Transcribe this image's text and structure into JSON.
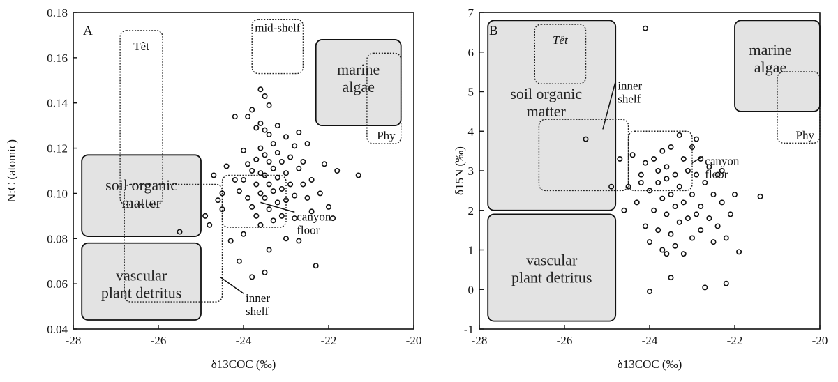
{
  "chart_data": [
    {
      "id": "A",
      "type": "scatter",
      "panel_label": "A",
      "xlabel": "δ13COC (‰)",
      "ylabel": "N:C (atomic)",
      "xlim": [
        -28,
        -20
      ],
      "ylim": [
        0.04,
        0.18
      ],
      "xticks": [
        "-28",
        "-26",
        "-24",
        "-22",
        "-20"
      ],
      "yticks": [
        "0.04",
        "0.06",
        "0.08",
        "0.10",
        "0.12",
        "0.14",
        "0.16",
        "0.18"
      ],
      "grid": false,
      "regions": [
        {
          "label": "marine algae",
          "lines": [
            "marine",
            "algae"
          ],
          "style": "solid",
          "x": [
            -22.3,
            -20.3
          ],
          "y": [
            0.13,
            0.168
          ]
        },
        {
          "label": "soil organic matter",
          "lines": [
            "soil organic",
            "matter"
          ],
          "style": "solid",
          "x": [
            -27.8,
            -25.0
          ],
          "y": [
            0.081,
            0.117
          ]
        },
        {
          "label": "vascular plant detritus",
          "lines": [
            "vascular",
            "plant detritus"
          ],
          "style": "solid",
          "x": [
            -27.8,
            -25.0
          ],
          "y": [
            0.044,
            0.078
          ]
        },
        {
          "label": "Têt",
          "lines": [
            "Têt"
          ],
          "style": "dotted",
          "x": [
            -26.9,
            -25.9
          ],
          "y": [
            0.095,
            0.172
          ]
        },
        {
          "label": "mid-shelf",
          "lines": [
            "mid-shelf"
          ],
          "style": "dotted",
          "x": [
            -23.8,
            -22.6
          ],
          "y": [
            0.153,
            0.177
          ]
        },
        {
          "label": "Phy",
          "lines": [
            "Phy"
          ],
          "style": "dotted",
          "x": [
            -21.1,
            -20.3
          ],
          "y": [
            0.122,
            0.162
          ]
        },
        {
          "label": "inner shelf",
          "lines": [
            "inner",
            "shelf"
          ],
          "style": "dotted",
          "x": [
            -26.8,
            -24.5
          ],
          "y": [
            0.052,
            0.104
          ]
        },
        {
          "label": "canyon floor",
          "lines": [
            "canyon",
            "floor"
          ],
          "style": "dotted",
          "x": [
            -24.5,
            -23.0
          ],
          "y": [
            0.085,
            0.108
          ]
        }
      ],
      "points": [
        [
          -25.5,
          0.083
        ],
        [
          -24.9,
          0.09
        ],
        [
          -24.8,
          0.086
        ],
        [
          -24.7,
          0.108
        ],
        [
          -24.6,
          0.097
        ],
        [
          -24.5,
          0.1
        ],
        [
          -24.5,
          0.093
        ],
        [
          -24.4,
          0.112
        ],
        [
          -24.3,
          0.079
        ],
        [
          -24.2,
          0.134
        ],
        [
          -24.2,
          0.106
        ],
        [
          -24.1,
          0.101
        ],
        [
          -24.1,
          0.07
        ],
        [
          -24.0,
          0.119
        ],
        [
          -24.0,
          0.106
        ],
        [
          -24.0,
          0.082
        ],
        [
          -23.9,
          0.134
        ],
        [
          -23.9,
          0.113
        ],
        [
          -23.9,
          0.098
        ],
        [
          -23.8,
          0.137
        ],
        [
          -23.8,
          0.11
        ],
        [
          -23.8,
          0.094
        ],
        [
          -23.8,
          0.063
        ],
        [
          -23.7,
          0.129
        ],
        [
          -23.7,
          0.115
        ],
        [
          -23.7,
          0.104
        ],
        [
          -23.7,
          0.09
        ],
        [
          -23.6,
          0.146
        ],
        [
          -23.6,
          0.131
        ],
        [
          -23.6,
          0.12
        ],
        [
          -23.6,
          0.109
        ],
        [
          -23.6,
          0.1
        ],
        [
          -23.6,
          0.086
        ],
        [
          -23.5,
          0.143
        ],
        [
          -23.5,
          0.128
        ],
        [
          -23.5,
          0.117
        ],
        [
          -23.5,
          0.108
        ],
        [
          -23.5,
          0.098
        ],
        [
          -23.5,
          0.065
        ],
        [
          -23.4,
          0.139
        ],
        [
          -23.4,
          0.126
        ],
        [
          -23.4,
          0.114
        ],
        [
          -23.4,
          0.104
        ],
        [
          -23.4,
          0.093
        ],
        [
          -23.4,
          0.075
        ],
        [
          -23.3,
          0.122
        ],
        [
          -23.3,
          0.111
        ],
        [
          -23.3,
          0.101
        ],
        [
          -23.3,
          0.088
        ],
        [
          -23.2,
          0.13
        ],
        [
          -23.2,
          0.118
        ],
        [
          -23.2,
          0.107
        ],
        [
          -23.2,
          0.096
        ],
        [
          -23.1,
          0.114
        ],
        [
          -23.1,
          0.102
        ],
        [
          -23.1,
          0.09
        ],
        [
          -23.0,
          0.125
        ],
        [
          -23.0,
          0.109
        ],
        [
          -23.0,
          0.097
        ],
        [
          -23.0,
          0.08
        ],
        [
          -22.9,
          0.116
        ],
        [
          -22.9,
          0.104
        ],
        [
          -22.8,
          0.121
        ],
        [
          -22.8,
          0.099
        ],
        [
          -22.8,
          0.089
        ],
        [
          -22.7,
          0.111
        ],
        [
          -22.7,
          0.127
        ],
        [
          -22.7,
          0.079
        ],
        [
          -22.6,
          0.104
        ],
        [
          -22.6,
          0.114
        ],
        [
          -22.5,
          0.098
        ],
        [
          -22.5,
          0.122
        ],
        [
          -22.4,
          0.106
        ],
        [
          -22.4,
          0.092
        ],
        [
          -22.3,
          0.068
        ],
        [
          -22.2,
          0.1
        ],
        [
          -22.1,
          0.113
        ],
        [
          -22.0,
          0.094
        ],
        [
          -21.9,
          0.089
        ],
        [
          -21.8,
          0.11
        ],
        [
          -21.3,
          0.108
        ]
      ]
    },
    {
      "id": "B",
      "type": "scatter",
      "panel_label": "B",
      "xlabel": "δ13COC (‰)",
      "ylabel": "δ15N (‰)",
      "xlim": [
        -28,
        -20
      ],
      "ylim": [
        -1,
        7
      ],
      "xticks": [
        "-28",
        "-26",
        "-24",
        "-22",
        "-20"
      ],
      "yticks": [
        "-1",
        "0",
        "1",
        "2",
        "3",
        "4",
        "5",
        "6",
        "7"
      ],
      "grid": false,
      "regions": [
        {
          "label": "marine algae",
          "lines": [
            "marine",
            "algae"
          ],
          "style": "solid",
          "x": [
            -22.0,
            -20.0
          ],
          "y": [
            4.5,
            6.8
          ]
        },
        {
          "label": "soil organic matter",
          "lines": [
            "soil organic",
            "matter"
          ],
          "style": "solid",
          "x": [
            -27.8,
            -24.8
          ],
          "y": [
            2.0,
            6.8
          ]
        },
        {
          "label": "vascular plant detritus",
          "lines": [
            "vascular",
            "plant detritus"
          ],
          "style": "solid",
          "x": [
            -27.8,
            -24.8
          ],
          "y": [
            -0.8,
            1.9
          ]
        },
        {
          "label": "Têt",
          "lines": [
            "Têt"
          ],
          "style": "dotted",
          "x": [
            -26.7,
            -25.5
          ],
          "y": [
            5.2,
            6.7
          ]
        },
        {
          "label": "Phy",
          "lines": [
            "Phy"
          ],
          "style": "dotted",
          "x": [
            -21.0,
            -20.0
          ],
          "y": [
            3.7,
            5.5
          ]
        },
        {
          "label": "inner shelf",
          "lines": [
            "inner",
            "shelf"
          ],
          "style": "dotted",
          "x": [
            -26.6,
            -24.5
          ],
          "y": [
            2.5,
            4.3
          ]
        },
        {
          "label": "canyon floor",
          "lines": [
            "canyon",
            "floor"
          ],
          "style": "dotted",
          "x": [
            -24.5,
            -23.0
          ],
          "y": [
            2.5,
            4.0
          ]
        }
      ],
      "points": [
        [
          -25.5,
          3.8
        ],
        [
          -24.1,
          6.6
        ],
        [
          -24.9,
          2.6
        ],
        [
          -24.7,
          3.3
        ],
        [
          -24.6,
          2.0
        ],
        [
          -24.5,
          2.6
        ],
        [
          -24.4,
          3.4
        ],
        [
          -24.3,
          2.2
        ],
        [
          -24.2,
          2.9
        ],
        [
          -24.1,
          3.2
        ],
        [
          -24.1,
          1.6
        ],
        [
          -24.0,
          2.5
        ],
        [
          -24.0,
          1.2
        ],
        [
          -24.0,
          -0.05
        ],
        [
          -23.9,
          3.3
        ],
        [
          -23.9,
          2.0
        ],
        [
          -23.8,
          2.7
        ],
        [
          -23.8,
          1.5
        ],
        [
          -23.8,
          3.0
        ],
        [
          -23.7,
          3.5
        ],
        [
          -23.7,
          2.3
        ],
        [
          -23.7,
          1.0
        ],
        [
          -23.6,
          2.8
        ],
        [
          -23.6,
          1.9
        ],
        [
          -23.6,
          3.1
        ],
        [
          -23.5,
          2.4
        ],
        [
          -23.5,
          1.4
        ],
        [
          -23.5,
          0.3
        ],
        [
          -23.5,
          3.6
        ],
        [
          -23.4,
          2.9
        ],
        [
          -23.4,
          2.1
        ],
        [
          -23.4,
          1.1
        ],
        [
          -23.3,
          3.9
        ],
        [
          -23.3,
          2.6
        ],
        [
          -23.3,
          1.7
        ],
        [
          -23.2,
          3.3
        ],
        [
          -23.2,
          2.2
        ],
        [
          -23.2,
          0.9
        ],
        [
          -23.1,
          3.0
        ],
        [
          -23.1,
          1.8
        ],
        [
          -23.0,
          3.6
        ],
        [
          -23.0,
          2.4
        ],
        [
          -23.0,
          1.3
        ],
        [
          -22.9,
          3.8
        ],
        [
          -22.9,
          2.9
        ],
        [
          -22.9,
          1.9
        ],
        [
          -22.8,
          3.3
        ],
        [
          -22.8,
          2.1
        ],
        [
          -22.8,
          1.5
        ],
        [
          -22.7,
          2.7
        ],
        [
          -22.7,
          0.05
        ],
        [
          -22.6,
          3.1
        ],
        [
          -22.6,
          1.8
        ],
        [
          -22.5,
          2.4
        ],
        [
          -22.5,
          1.2
        ],
        [
          -22.4,
          2.9
        ],
        [
          -22.4,
          1.6
        ],
        [
          -22.3,
          2.2
        ],
        [
          -22.2,
          1.3
        ],
        [
          -22.2,
          0.15
        ],
        [
          -22.1,
          1.9
        ],
        [
          -22.0,
          2.4
        ],
        [
          -21.9,
          0.95
        ],
        [
          -21.4,
          2.35
        ],
        [
          -22.3,
          3.0
        ],
        [
          -23.6,
          0.9
        ],
        [
          -24.2,
          2.7
        ]
      ]
    }
  ]
}
